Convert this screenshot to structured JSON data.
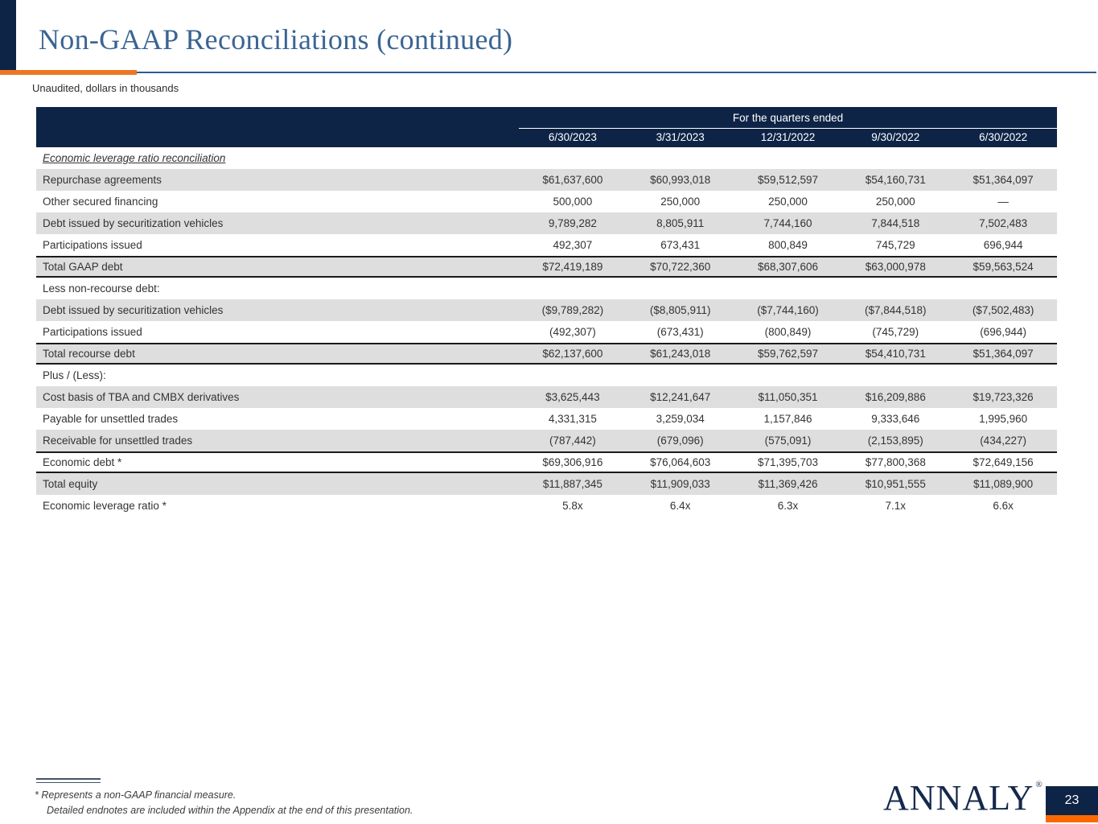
{
  "page": {
    "title": "Non-GAAP Reconciliations (continued)",
    "subtitle": "Unaudited, dollars in thousands",
    "page_number": "23",
    "logo_text": "ANNALY",
    "logo_reg_mark": "®"
  },
  "colors": {
    "navy": "#0E2447",
    "title_blue": "#3A6493",
    "rule_blue": "#2D5C8E",
    "accent_orange": "#EE7623",
    "page_bar_orange": "#F96900",
    "row_shade_gray": "#DEDEDE"
  },
  "table": {
    "header": {
      "group_label": "For the quarters ended",
      "columns": [
        "6/30/2023",
        "3/31/2023",
        "12/31/2022",
        "9/30/2022",
        "6/30/2022"
      ]
    },
    "rows": [
      {
        "label": "Economic leverage ratio reconciliation",
        "values": [
          "",
          "",
          "",
          "",
          ""
        ],
        "section": true,
        "shaded": false,
        "border_top": false,
        "border_bottom": false
      },
      {
        "label": "Repurchase agreements",
        "values": [
          "$61,637,600",
          "$60,993,018",
          "$59,512,597",
          "$54,160,731",
          "$51,364,097"
        ],
        "section": false,
        "shaded": true,
        "border_top": false,
        "border_bottom": false
      },
      {
        "label": "Other secured financing",
        "values": [
          "500,000",
          "250,000",
          "250,000",
          "250,000",
          "—"
        ],
        "section": false,
        "shaded": false,
        "border_top": false,
        "border_bottom": false
      },
      {
        "label": "Debt issued by securitization vehicles",
        "values": [
          "9,789,282",
          "8,805,911",
          "7,744,160",
          "7,844,518",
          "7,502,483"
        ],
        "section": false,
        "shaded": true,
        "border_top": false,
        "border_bottom": false
      },
      {
        "label": "Participations issued",
        "values": [
          "492,307",
          "673,431",
          "800,849",
          "745,729",
          "696,944"
        ],
        "section": false,
        "shaded": false,
        "border_top": false,
        "border_bottom": false
      },
      {
        "label": "Total GAAP debt",
        "values": [
          "$72,419,189",
          "$70,722,360",
          "$68,307,606",
          "$63,000,978",
          "$59,563,524"
        ],
        "section": false,
        "shaded": true,
        "border_top": true,
        "border_bottom": true
      },
      {
        "label": "Less non-recourse debt:",
        "values": [
          "",
          "",
          "",
          "",
          ""
        ],
        "section": false,
        "shaded": false,
        "border_top": false,
        "border_bottom": false
      },
      {
        "label": "Debt issued by securitization vehicles",
        "values": [
          "($9,789,282)",
          "($8,805,911)",
          "($7,744,160)",
          "($7,844,518)",
          "($7,502,483)"
        ],
        "section": false,
        "shaded": true,
        "border_top": false,
        "border_bottom": false
      },
      {
        "label": "Participations issued",
        "values": [
          "(492,307)",
          "(673,431)",
          "(800,849)",
          "(745,729)",
          "(696,944)"
        ],
        "section": false,
        "shaded": false,
        "border_top": false,
        "border_bottom": false
      },
      {
        "label": "Total recourse debt",
        "values": [
          "$62,137,600",
          "$61,243,018",
          "$59,762,597",
          "$54,410,731",
          "$51,364,097"
        ],
        "section": false,
        "shaded": true,
        "border_top": true,
        "border_bottom": true
      },
      {
        "label": "Plus / (Less):",
        "values": [
          "",
          "",
          "",
          "",
          ""
        ],
        "section": false,
        "shaded": false,
        "border_top": false,
        "border_bottom": false
      },
      {
        "label": "Cost basis of TBA and CMBX derivatives",
        "values": [
          "$3,625,443",
          "$12,241,647",
          "$11,050,351",
          "$16,209,886",
          "$19,723,326"
        ],
        "section": false,
        "shaded": true,
        "border_top": false,
        "border_bottom": false
      },
      {
        "label": "Payable for unsettled trades",
        "values": [
          "4,331,315",
          "3,259,034",
          "1,157,846",
          "9,333,646",
          "1,995,960"
        ],
        "section": false,
        "shaded": false,
        "border_top": false,
        "border_bottom": false
      },
      {
        "label": "Receivable for unsettled trades",
        "values": [
          "(787,442)",
          "(679,096)",
          "(575,091)",
          "(2,153,895)",
          "(434,227)"
        ],
        "section": false,
        "shaded": true,
        "border_top": false,
        "border_bottom": false
      },
      {
        "label": "Economic debt *",
        "values": [
          "$69,306,916",
          "$76,064,603",
          "$71,395,703",
          "$77,800,368",
          "$72,649,156"
        ],
        "section": false,
        "shaded": false,
        "border_top": true,
        "border_bottom": true
      },
      {
        "label": "Total equity",
        "values": [
          "$11,887,345",
          "$11,909,033",
          "$11,369,426",
          "$10,951,555",
          "$11,089,900"
        ],
        "section": false,
        "shaded": true,
        "border_top": false,
        "border_bottom": false
      },
      {
        "label": "Economic leverage ratio *",
        "values": [
          "5.8x",
          "6.4x",
          "6.3x",
          "7.1x",
          "6.6x"
        ],
        "section": false,
        "shaded": false,
        "border_top": false,
        "border_bottom": false
      }
    ]
  },
  "footnotes": {
    "line1": "* Represents a non-GAAP financial measure.",
    "line2": "Detailed endnotes are included within the Appendix at the end of this presentation."
  }
}
